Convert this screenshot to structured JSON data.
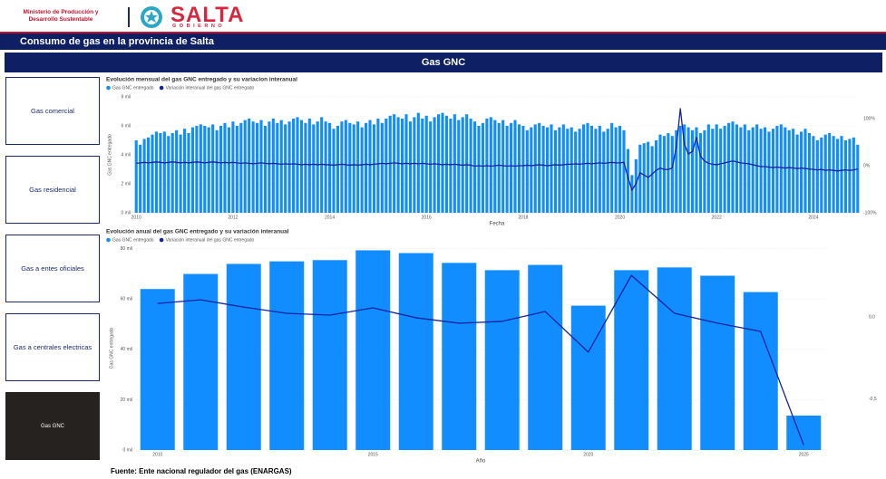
{
  "header": {
    "ministry": [
      "Ministerio de Producción y",
      "Desarrollo Sustentable"
    ],
    "brand": "SALTA",
    "brand_sub": "G O B I E R N O",
    "title": "Consumo de gas en la provincia de Salta",
    "subtitle": "Gas GNC"
  },
  "nav": [
    "Gas comercial",
    "Gas residencial",
    "Gas a entes oficiales",
    "Gas a centrales electricas",
    "Gas GNC"
  ],
  "footer": "Fuente: Ente nacional regulador del gas (ENARGAS)",
  "chart_data": [
    {
      "type": "combo",
      "title": "Evolución mensual del gas GNC entregado y su variacion interanual",
      "xlabel": "Fecha",
      "ylabel": "Gas GNC entregado",
      "grid": true,
      "legend": "top-left",
      "categories": [
        "2010",
        null,
        null,
        null,
        null,
        null,
        null,
        null,
        null,
        null,
        null,
        null,
        null,
        null,
        null,
        null,
        null,
        null,
        null,
        null,
        null,
        null,
        null,
        null,
        "2012",
        null,
        null,
        null,
        null,
        null,
        null,
        null,
        null,
        null,
        null,
        null,
        null,
        null,
        null,
        null,
        null,
        null,
        null,
        null,
        null,
        null,
        null,
        null,
        "2014",
        null,
        null,
        null,
        null,
        null,
        null,
        null,
        null,
        null,
        null,
        null,
        null,
        null,
        null,
        null,
        null,
        null,
        null,
        null,
        null,
        null,
        null,
        null,
        "2016",
        null,
        null,
        null,
        null,
        null,
        null,
        null,
        null,
        null,
        null,
        null,
        null,
        null,
        null,
        null,
        null,
        null,
        null,
        null,
        null,
        null,
        null,
        null,
        "2018",
        null,
        null,
        null,
        null,
        null,
        null,
        null,
        null,
        null,
        null,
        null,
        null,
        null,
        null,
        null,
        null,
        null,
        null,
        null,
        null,
        null,
        null,
        null,
        "2020",
        null,
        null,
        null,
        null,
        null,
        null,
        null,
        null,
        null,
        null,
        null,
        null,
        null,
        null,
        null,
        null,
        null,
        null,
        null,
        null,
        null,
        null,
        null,
        "2022",
        null,
        null,
        null,
        null,
        null,
        null,
        null,
        null,
        null,
        null,
        null,
        null,
        null,
        null,
        null,
        null,
        null,
        null,
        null,
        null,
        null,
        null,
        null,
        "2024",
        null,
        null,
        null,
        null,
        null,
        null,
        null,
        null,
        null,
        null,
        null
      ],
      "ylim": [
        0,
        8000
      ],
      "yticks": [
        {
          "value": 0,
          "label": "0 mil"
        },
        {
          "value": 2000,
          "label": "2 mil"
        },
        {
          "value": 4000,
          "label": "4 mil"
        },
        {
          "value": 6000,
          "label": "6 mil"
        },
        {
          "value": 8000,
          "label": "8 mil"
        }
      ],
      "y2lim": [
        -100,
        146
      ],
      "y2ticks": [
        {
          "value": -100,
          "label": "-100%"
        },
        {
          "value": 0,
          "label": "0%"
        },
        {
          "value": 100,
          "label": "100%"
        }
      ],
      "series": [
        {
          "name": "Gas GNC entregado",
          "type": "bar",
          "color": "#118dff",
          "values": [
            5000,
            4700,
            5100,
            5200,
            5400,
            5600,
            5500,
            5600,
            5300,
            5500,
            5700,
            5400,
            5800,
            5500,
            5900,
            6000,
            6100,
            6000,
            5900,
            6100,
            5700,
            6000,
            6200,
            5900,
            6300,
            6000,
            6200,
            6400,
            6500,
            6300,
            6200,
            6400,
            6000,
            6300,
            6500,
            6200,
            6400,
            6100,
            6300,
            6500,
            6600,
            6400,
            6200,
            6500,
            6100,
            6300,
            6600,
            6300,
            6200,
            5800,
            6000,
            6300,
            6400,
            6200,
            6100,
            6300,
            5900,
            6200,
            6400,
            6100,
            6500,
            6200,
            6500,
            6700,
            6800,
            6600,
            6500,
            6800,
            6300,
            6600,
            6900,
            6500,
            6700,
            6300,
            6600,
            6800,
            6900,
            6700,
            6500,
            6800,
            6400,
            6600,
            6800,
            6500,
            6300,
            6000,
            6200,
            6500,
            6600,
            6400,
            6200,
            6400,
            6000,
            6200,
            6400,
            6100,
            6000,
            5700,
            5900,
            6100,
            6200,
            6000,
            5900,
            6100,
            5700,
            5900,
            6100,
            5800,
            5900,
            5600,
            5800,
            6100,
            6200,
            6000,
            5800,
            6000,
            5600,
            5800,
            6200,
            5900,
            6000,
            5700,
            4400,
            2600,
            3700,
            4700,
            4800,
            4900,
            4600,
            5000,
            5400,
            5300,
            5500,
            5300,
            5700,
            6000,
            6100,
            5900,
            5700,
            5900,
            5500,
            5700,
            6100,
            5800,
            6100,
            5800,
            6000,
            6200,
            6300,
            6100,
            5900,
            6100,
            5700,
            5900,
            6100,
            5800,
            5900,
            5600,
            5800,
            6000,
            6100,
            5900,
            5700,
            5800,
            5400,
            5600,
            5800,
            5500,
            5300,
            5000,
            5200,
            5400,
            5500,
            5300,
            5100,
            5300,
            5000,
            5100,
            5200,
            4700
          ]
        },
        {
          "name": "Variación interanual del gas GNC entregado",
          "type": "line",
          "axis": "y2",
          "color": "#12239e",
          "values": [
            5,
            6,
            7,
            6,
            7,
            8,
            7,
            6,
            7,
            8,
            7,
            6,
            7,
            6,
            7,
            8,
            7,
            6,
            7,
            8,
            7,
            6,
            7,
            6,
            7,
            6,
            5,
            6,
            5,
            4,
            5,
            6,
            5,
            4,
            5,
            4,
            3,
            4,
            3,
            4,
            3,
            2,
            3,
            2,
            3,
            2,
            3,
            2,
            2,
            1,
            2,
            3,
            2,
            1,
            2,
            1,
            2,
            3,
            2,
            3,
            4,
            5,
            4,
            5,
            6,
            5,
            4,
            5,
            4,
            5,
            4,
            5,
            4,
            3,
            4,
            3,
            2,
            3,
            2,
            3,
            2,
            1,
            2,
            1,
            -1,
            0,
            -1,
            0,
            -1,
            0,
            1,
            0,
            -1,
            0,
            -1,
            0,
            0,
            1,
            0,
            1,
            2,
            1,
            0,
            1,
            2,
            1,
            2,
            3,
            3,
            4,
            3,
            4,
            5,
            4,
            5,
            6,
            5,
            6,
            7,
            6,
            6,
            7,
            -25,
            -52,
            -38,
            -15,
            -20,
            -25,
            -18,
            -10,
            -5,
            -8,
            -8,
            -5,
            40,
            121,
            45,
            25,
            30,
            60,
            20,
            10,
            5,
            3,
            2,
            4,
            6,
            8,
            10,
            8,
            6,
            5,
            4,
            2,
            0,
            -2,
            -2,
            -3,
            -4,
            -3,
            -4,
            -5,
            -4,
            -5,
            -6,
            -5,
            -6,
            -7,
            -8,
            -9,
            -8,
            -10,
            -9,
            -10,
            -11,
            -10,
            -9,
            -10,
            -9,
            -7
          ]
        }
      ]
    },
    {
      "type": "combo",
      "title": "Evolución anual del gas GNC entregado y su variación interanual",
      "xlabel": "Año",
      "ylabel": "Gas GNC entregado",
      "grid": true,
      "legend": "top-left",
      "categories": [
        "2010",
        null,
        null,
        null,
        null,
        "2015",
        null,
        null,
        null,
        null,
        "2020",
        null,
        null,
        null,
        null,
        "2025"
      ],
      "ylim": [
        0,
        81000
      ],
      "yticks": [
        {
          "value": 0,
          "label": "0 mil"
        },
        {
          "value": 20000,
          "label": "20 mil"
        },
        {
          "value": 40000,
          "label": "40 mil"
        },
        {
          "value": 60000,
          "label": "60 mil"
        },
        {
          "value": 80000,
          "label": "80 mil"
        }
      ],
      "y2lim": [
        -0.81,
        0.43
      ],
      "y2ticks": [
        {
          "value": -0.5,
          "label": "-0,5"
        },
        {
          "value": 0,
          "label": "0,0"
        }
      ],
      "series": [
        {
          "name": "Gas GNC entregado",
          "type": "bar",
          "color": "#118dff",
          "values": [
            64000,
            70000,
            74000,
            75000,
            75500,
            79400,
            78300,
            74400,
            71500,
            73600,
            57400,
            71500,
            72600,
            69300,
            62800,
            13700
          ]
        },
        {
          "name": "Variación interanual del gas GNC entregado",
          "type": "line",
          "axis": "y2",
          "color": "#12239e",
          "values": [
            0.082,
            0.104,
            0.06,
            0.022,
            0.011,
            0.055,
            -0.005,
            -0.038,
            -0.027,
            0.033,
            -0.214,
            0.253,
            0.022,
            -0.038,
            -0.088,
            -0.78
          ]
        }
      ]
    }
  ]
}
